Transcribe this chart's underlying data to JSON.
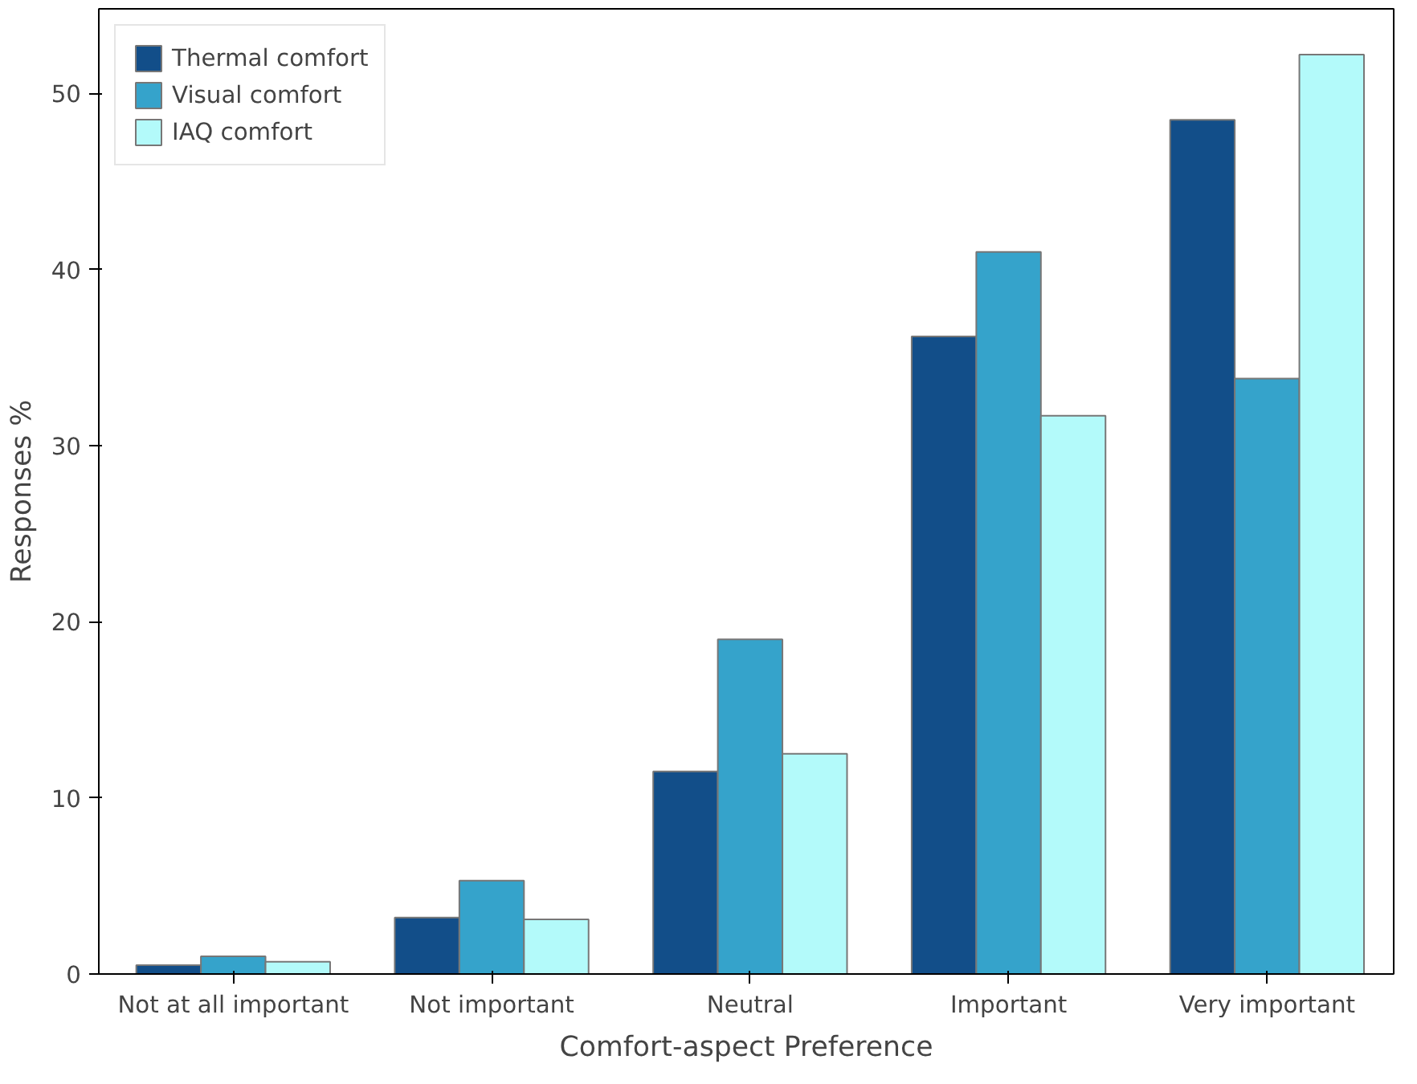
{
  "chart_data": {
    "type": "bar",
    "xlabel": "Comfort-aspect Preference",
    "ylabel": "Responses %",
    "categories": [
      "Not at all important",
      "Not important",
      "Neutral",
      "Important",
      "Very important"
    ],
    "series": [
      {
        "name": "Thermal comfort",
        "color": "#124e89",
        "values": [
          0.5,
          3.2,
          11.5,
          36.2,
          48.5
        ]
      },
      {
        "name": "Visual comfort",
        "color": "#35a3cb",
        "values": [
          1.0,
          5.3,
          19.0,
          41.0,
          33.8
        ]
      },
      {
        "name": "IAQ comfort",
        "color": "#b3fafa",
        "values": [
          0.7,
          3.1,
          12.5,
          31.7,
          52.2
        ]
      }
    ],
    "ylim": [
      0,
      54.8
    ],
    "yticks": [
      0,
      10,
      20,
      30,
      40,
      50
    ],
    "grid": false,
    "legend": "top left"
  }
}
